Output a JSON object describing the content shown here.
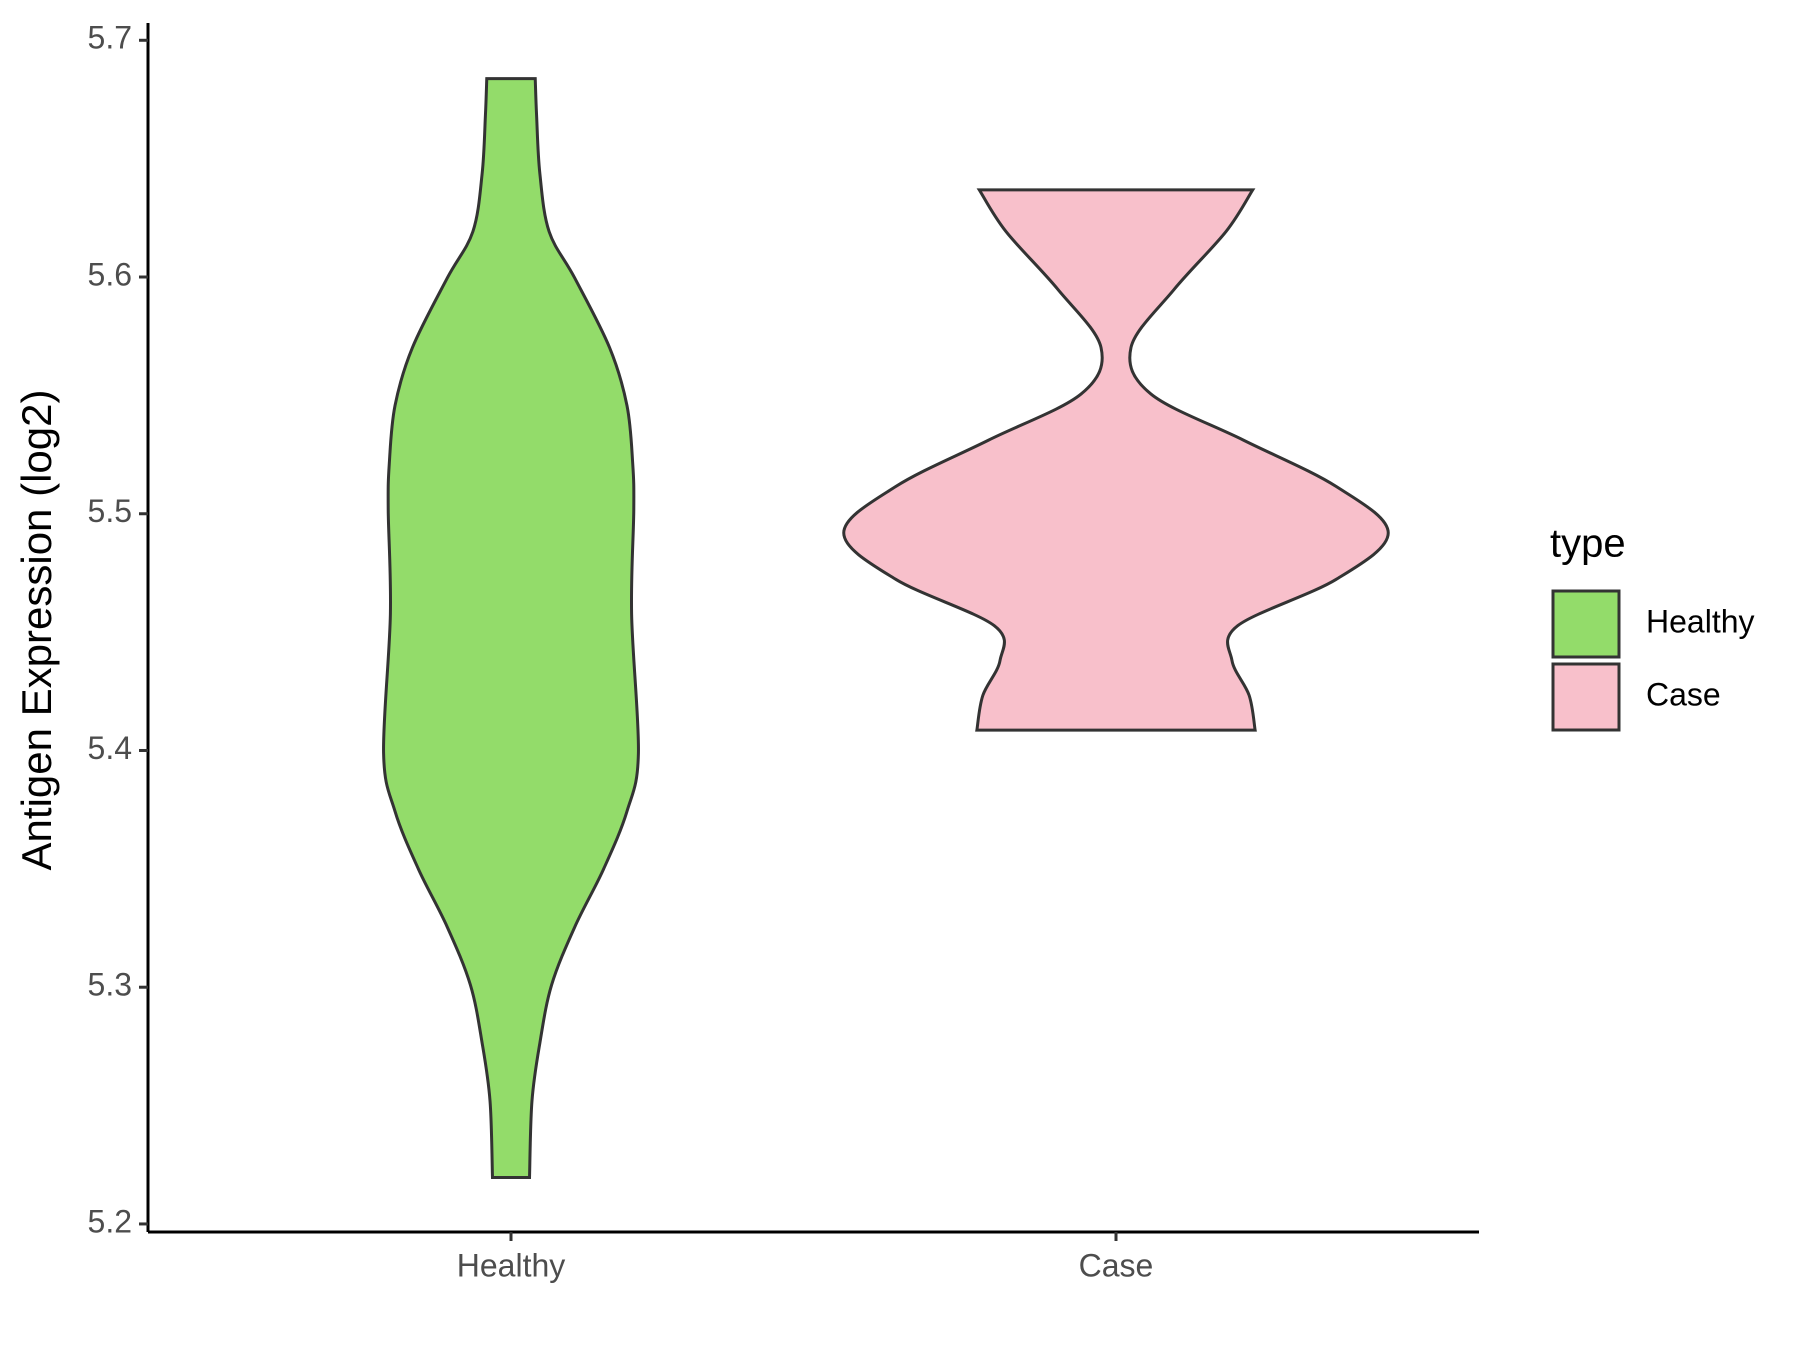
{
  "chart_data": {
    "type": "violin",
    "y_label": "Antigen Expression (log2)",
    "categories": [
      "Healthy",
      "Case"
    ],
    "legend_title": "type",
    "legend_position": "right",
    "ylim": [
      5.1966,
      5.7073
    ],
    "yticks": [
      5.2,
      5.3,
      5.4,
      5.5,
      5.6,
      5.7
    ],
    "series": [
      {
        "name": "Healthy",
        "color": "#93dc6a",
        "y": [
          5.6838,
          5.6682,
          5.6437,
          5.6192,
          5.5996,
          5.5702,
          5.5457,
          5.5213,
          5.5017,
          5.4576,
          5.3988,
          5.3743,
          5.3499,
          5.3254,
          5.3009,
          5.2764,
          5.2519,
          5.2196
        ],
        "density": [
          0.089,
          0.094,
          0.106,
          0.14,
          0.234,
          0.362,
          0.426,
          0.447,
          0.451,
          0.443,
          0.468,
          0.426,
          0.34,
          0.234,
          0.149,
          0.106,
          0.077,
          0.068
        ]
      },
      {
        "name": "Case",
        "color": "#f8c0cb",
        "y": [
          5.6368,
          5.6192,
          5.5947,
          5.5702,
          5.5506,
          5.5311,
          5.5115,
          5.4919,
          5.4723,
          5.4527,
          5.438,
          5.4233,
          5.4086
        ],
        "density": [
          0.502,
          0.404,
          0.213,
          0.055,
          0.128,
          0.468,
          0.809,
          1.0,
          0.809,
          0.447,
          0.426,
          0.489,
          0.511
        ]
      }
    ]
  }
}
